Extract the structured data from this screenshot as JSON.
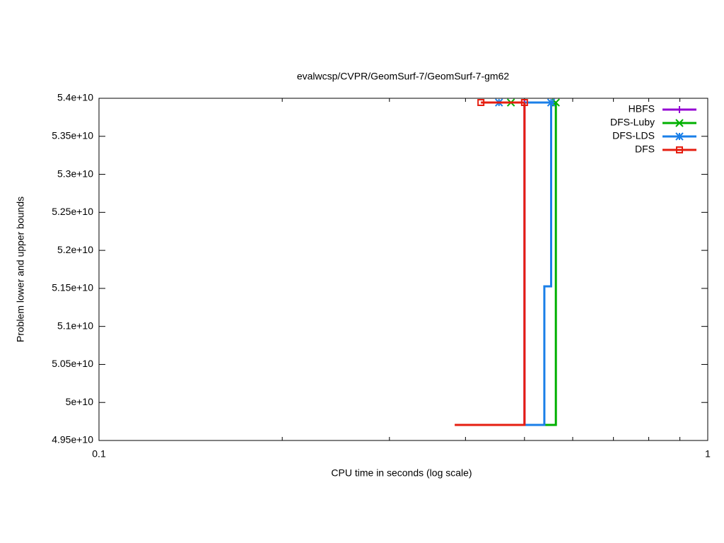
{
  "chart_data": {
    "type": "step",
    "title": "evalwcsp/CVPR/GeomSurf-7/GeomSurf-7-gm62",
    "xlabel": "CPU time in seconds (log scale)",
    "ylabel": "Problem lower and upper bounds",
    "xlog": true,
    "xlim": [
      0.1,
      1
    ],
    "xticks": [
      0.1,
      1
    ],
    "xminorticks": [
      0.2,
      0.3,
      0.4,
      0.5,
      0.6,
      0.7,
      0.8,
      0.9
    ],
    "ylim": [
      49500000000,
      54000000000
    ],
    "yticks": [
      {
        "value": 49500000000,
        "label": "4.95e+10"
      },
      {
        "value": 50000000000,
        "label": "5e+10"
      },
      {
        "value": 50500000000,
        "label": "5.05e+10"
      },
      {
        "value": 51000000000,
        "label": "5.1e+10"
      },
      {
        "value": 51500000000,
        "label": "5.15e+10"
      },
      {
        "value": 52000000000,
        "label": "5.2e+10"
      },
      {
        "value": 52500000000,
        "label": "5.25e+10"
      },
      {
        "value": 53000000000,
        "label": "5.3e+10"
      },
      {
        "value": 53500000000,
        "label": "5.35e+10"
      },
      {
        "value": 54000000000,
        "label": "5.4e+10"
      }
    ],
    "legend": "top-right",
    "series": [
      {
        "name": "HBFS",
        "color": "#9400d3",
        "marker": "plus",
        "lower": {
          "x": [
            0.5,
            0.5
          ],
          "values": [
            49705000000,
            53944000000
          ]
        },
        "upper": {
          "x": [
            0.5
          ],
          "values": [
            53944000000
          ]
        }
      },
      {
        "name": "DFS-Luby",
        "color": "#00b000",
        "marker": "cross",
        "lower": {
          "x": [
            0.5,
            0.563,
            0.563
          ],
          "values": [
            49705000000,
            49705000000,
            53944000000
          ]
        },
        "upper": {
          "x": [
            0.475,
            0.563
          ],
          "values": [
            53944000000,
            53944000000
          ]
        }
      },
      {
        "name": "DFS-LDS",
        "color": "#1a7fe8",
        "marker": "star",
        "lower": {
          "x": [
            0.5,
            0.539,
            0.539,
            0.553,
            0.553
          ],
          "values": [
            49705000000,
            49705000000,
            51527000000,
            51527000000,
            53944000000
          ]
        },
        "upper": {
          "x": [
            0.454,
            0.553
          ],
          "values": [
            53944000000,
            53944000000
          ]
        }
      },
      {
        "name": "DFS",
        "color": "#e51e10",
        "marker": "square",
        "lower": {
          "x": [
            0.384,
            0.5,
            0.5
          ],
          "values": [
            49705000000,
            49705000000,
            53944000000
          ]
        },
        "upper": {
          "x": [
            0.424,
            0.5
          ],
          "values": [
            53944000000,
            53944000000
          ]
        }
      }
    ]
  }
}
